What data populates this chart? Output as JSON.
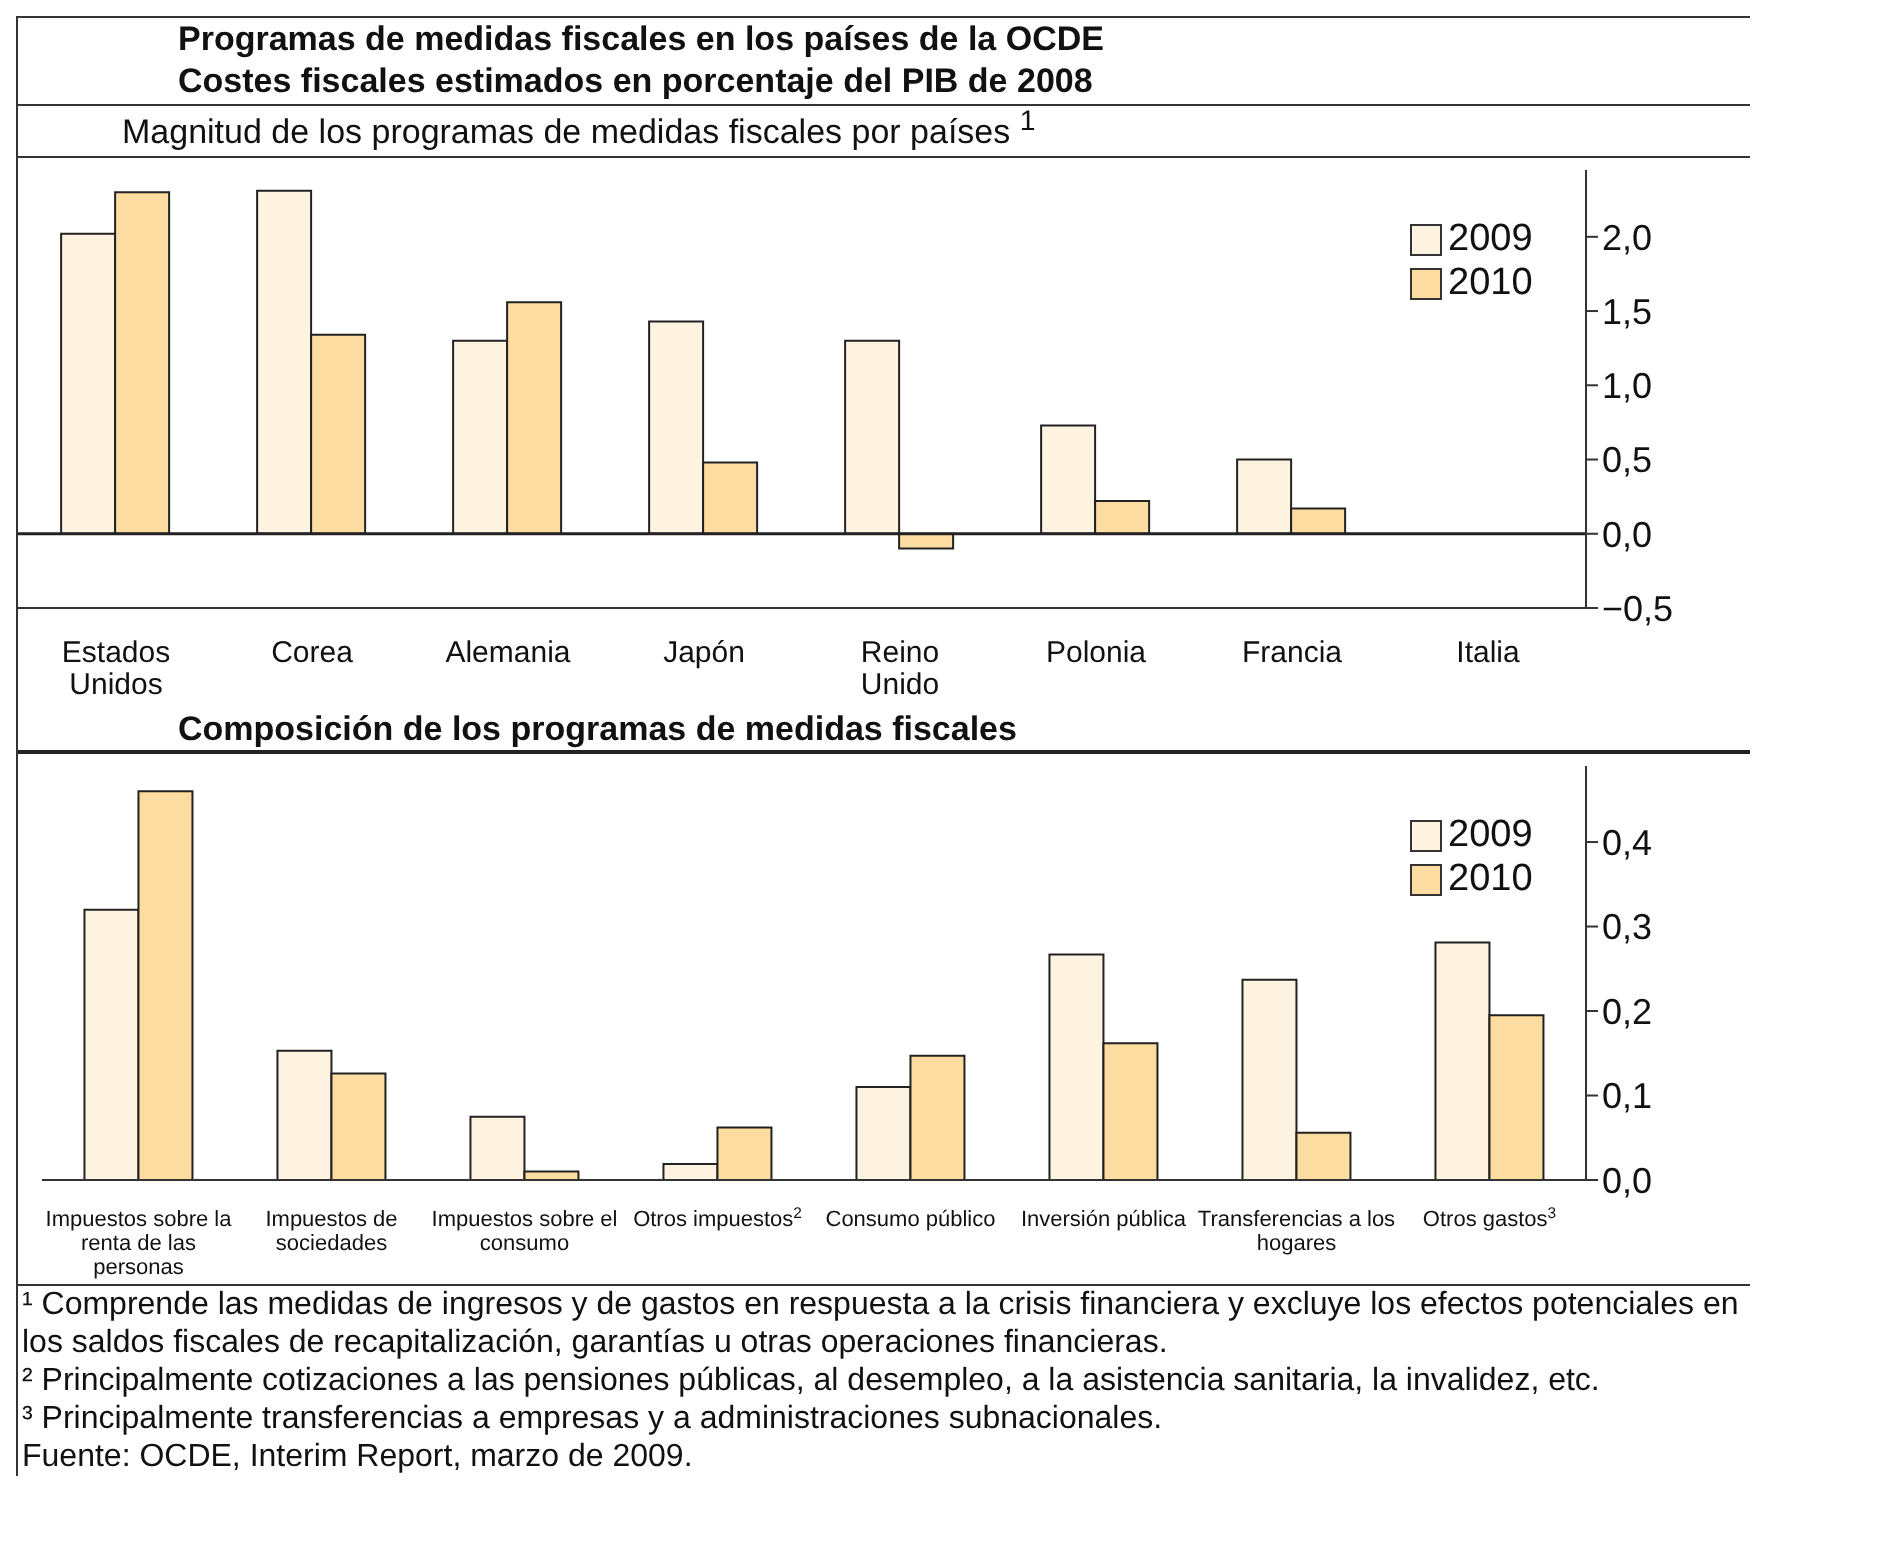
{
  "chart_data": [
    {
      "type": "bar",
      "title": "Programas de medidas fiscales en los países de la OCDE",
      "subtitle": "Costes fiscales estimados en porcentaje del PIB de 2008",
      "annotations": [
        "Magnitud de los programas de medidas fiscales por países $^{1}$"
      ],
      "categories": [
        "Estados Unidos",
        "Corea",
        "Alemania",
        "Japón",
        "Reino Unido",
        "Polonia",
        "Francia",
        "Italia"
      ],
      "series": [
        {
          "name": "2009",
          "color": "#fdf3e0",
          "values": [
            2.02,
            2.31,
            1.3,
            1.43,
            1.3,
            0.73,
            0.5,
            null
          ]
        },
        {
          "name": "2010",
          "color": "#fcdca0",
          "values": [
            2.3,
            1.34,
            1.56,
            0.48,
            -0.1,
            0.22,
            0.17,
            null
          ]
        }
      ],
      "ylim": [
        -0.5,
        2.45
      ],
      "yticks": [
        {
          "value": -0.5,
          "label": "−0,5"
        },
        {
          "value": 0,
          "label": "0,0"
        },
        {
          "value": 0.5,
          "label": "0,5"
        },
        {
          "value": 1,
          "label": "1,0"
        },
        {
          "value": 1.5,
          "label": "1,5"
        },
        {
          "value": 2,
          "label": "2,0"
        }
      ],
      "ref_lines": [
        {
          "axis": "y",
          "value": 0,
          "color": "#222222"
        }
      ],
      "legend": "top right",
      "grid": false
    },
    {
      "type": "bar",
      "title": "Composición de los programas de medidas fiscales",
      "annotations": [
        "¹ Comprende las medidas de ingresos y de gastos en respuesta a la crisis financiera y excluye los efectos potenciales en los saldos fiscales de recapitalización, garantías u otras operaciones financieras.",
        "² Principalmente cotizaciones a las pensiones públicas, al desempleo, a la asistencia sanitaria, la invalidez, etc.",
        "³ Principalmente transferencias a empresas y a administraciones subnacionales.",
        "Fuente: OCDE, Interim Report, marzo de 2009."
      ],
      "categories": [
        "Impuestos sobre la renta de las personas",
        "Impuestos de sociedades",
        "Impuestos sobre el consumo",
        "Otros impuestos$^{2}$",
        "Consumo público",
        "Inversión pública",
        "Transferencias a los hogares",
        "Otros gastos$^{3}$"
      ],
      "series": [
        {
          "name": "2009",
          "color": "#fdf3e0",
          "values": [
            0.32,
            0.153,
            0.075,
            0.019,
            0.11,
            0.267,
            0.237,
            0.281
          ]
        },
        {
          "name": "2010",
          "color": "#fcdca0",
          "values": [
            0.46,
            0.126,
            0.01,
            0.062,
            0.147,
            0.162,
            0.056,
            0.195
          ]
        }
      ],
      "ylim": [
        0,
        0.49
      ],
      "yticks": [
        {
          "value": 0,
          "label": "0,0"
        },
        {
          "value": 0.1,
          "label": "0,1"
        },
        {
          "value": 0.2,
          "label": "0,2"
        },
        {
          "value": 0.3,
          "label": "0,3"
        },
        {
          "value": 0.4,
          "label": "0,4"
        }
      ],
      "legend": "top right",
      "grid": false
    }
  ]
}
